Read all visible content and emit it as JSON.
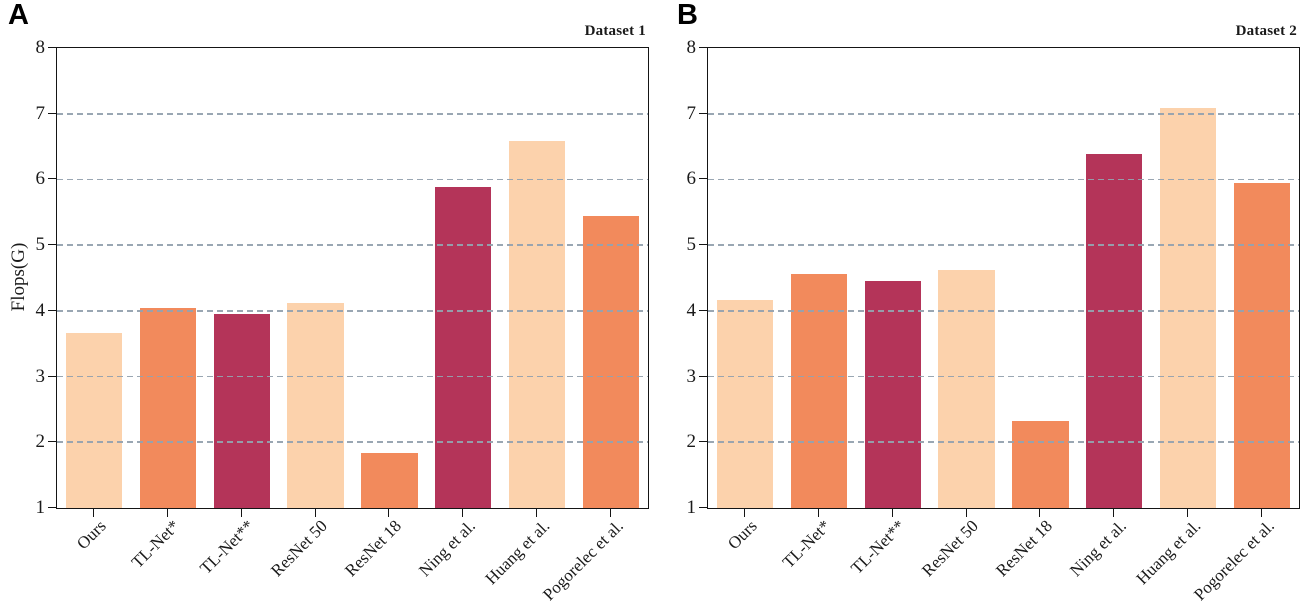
{
  "figure": {
    "panels": [
      {
        "letter": "A",
        "title": "Dataset 1",
        "ylabel": "Flops(G)"
      },
      {
        "letter": "B",
        "title": "Dataset 2",
        "ylabel": ""
      }
    ]
  },
  "chart_data": [
    {
      "type": "bar",
      "title": "Dataset 1",
      "ylabel": "Flops(G)",
      "xlabel": "",
      "categories": [
        "Ours",
        "TL-Net*",
        "TL-Net**",
        "ResNet 50",
        "ResNet 18",
        "Ning et al.",
        "Huang et al.",
        "Pogorelec et al."
      ],
      "values": [
        3.66,
        4.05,
        3.96,
        4.12,
        1.83,
        5.88,
        6.58,
        5.45
      ],
      "ylim": [
        1,
        8
      ],
      "yticks": [
        1,
        2,
        3,
        4,
        5,
        6,
        7,
        8
      ],
      "grid": "horizontal-dashed-over-bars",
      "gridline_color": "#94a2af",
      "legend": "none",
      "palette": [
        "#FCD2AC",
        "#F28A5C",
        "#B43459"
      ],
      "x_label_rotation_deg": -45
    },
    {
      "type": "bar",
      "title": "Dataset 2",
      "ylabel": "",
      "xlabel": "",
      "categories": [
        "Ours",
        "TL-Net*",
        "TL-Net**",
        "ResNet 50",
        "ResNet 18",
        "Ning et al.",
        "Huang et al.",
        "Pogorelec et al."
      ],
      "values": [
        4.17,
        4.56,
        4.45,
        4.62,
        2.33,
        6.38,
        7.08,
        5.94
      ],
      "ylim": [
        1,
        8
      ],
      "yticks": [
        1,
        2,
        3,
        4,
        5,
        6,
        7,
        8
      ],
      "grid": "horizontal-dashed-over-bars",
      "gridline_color": "#94a2af",
      "legend": "none",
      "palette": [
        "#FCD2AC",
        "#F28A5C",
        "#B43459"
      ],
      "x_label_rotation_deg": -45
    }
  ]
}
